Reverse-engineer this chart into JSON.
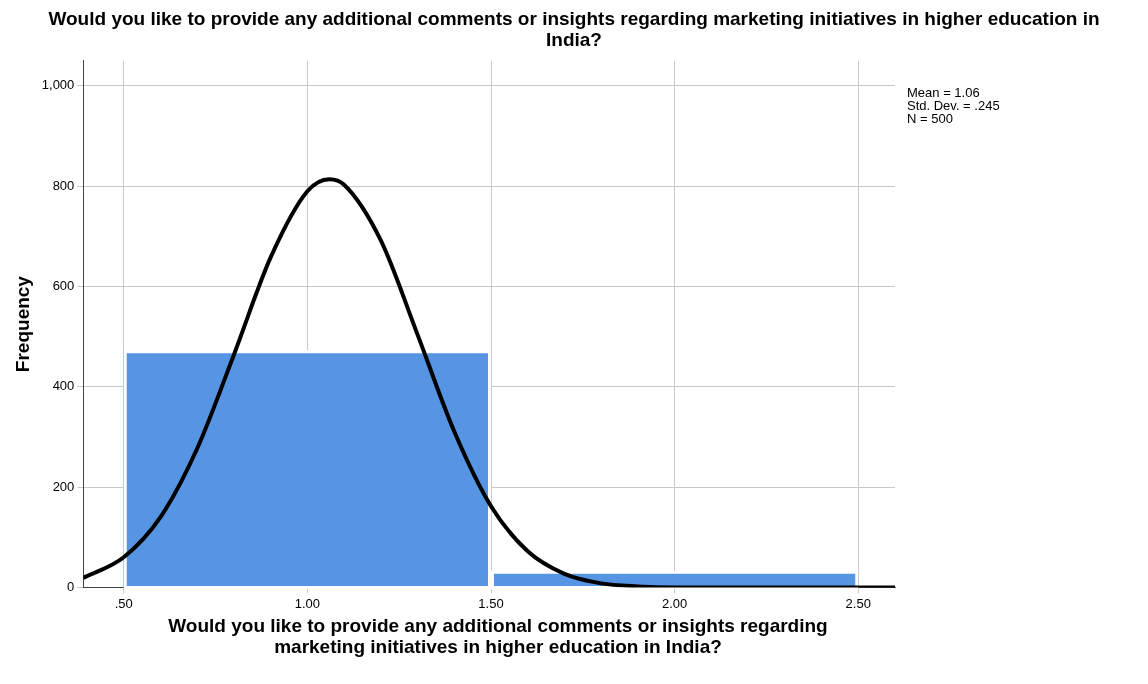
{
  "chart_data": {
    "type": "histogram",
    "title": "Would you like to provide any additional comments or insights regarding marketing initiatives in higher education in India?",
    "xlabel": "Would you like to provide any additional comments or insights regarding marketing initiatives in higher education in India?",
    "ylabel": "Frequency",
    "bins": [
      0.5,
      1.5,
      2.5
    ],
    "values": [
      470,
      30
    ],
    "color": "#5595e3",
    "series": [
      {
        "type": "line",
        "color": "#000000",
        "x": [
          0.39,
          0.5,
          0.6,
          0.7,
          0.8,
          0.9,
          1.0,
          1.06,
          1.1,
          1.2,
          1.3,
          1.4,
          1.5,
          1.6,
          1.7,
          1.8,
          1.9,
          2.0,
          2.2,
          2.6
        ],
        "values": [
          19,
          60,
          140,
          277,
          464,
          658,
          790,
          814,
          803,
          692,
          504,
          311,
          162,
          72,
          27,
          8,
          2,
          0,
          0,
          0
        ]
      }
    ],
    "marker": "none",
    "grid": true,
    "legend": false,
    "xlim": [
      0.39,
      2.6
    ],
    "xticks": [
      {
        "value": 0.5,
        "label": ".50"
      },
      {
        "value": 1,
        "label": "1.00"
      },
      {
        "value": 1.5,
        "label": "1.50"
      },
      {
        "value": 2,
        "label": "2.00"
      },
      {
        "value": 2.5,
        "label": "2.50"
      }
    ],
    "ylim": [
      0,
      1050
    ],
    "yticks": [
      0,
      200,
      400,
      600,
      800,
      {
        "value": 1000,
        "label": "1,000"
      }
    ],
    "annotations": [
      "Mean = 1.06",
      "Std. Dev. = .245",
      "N = 500"
    ]
  }
}
